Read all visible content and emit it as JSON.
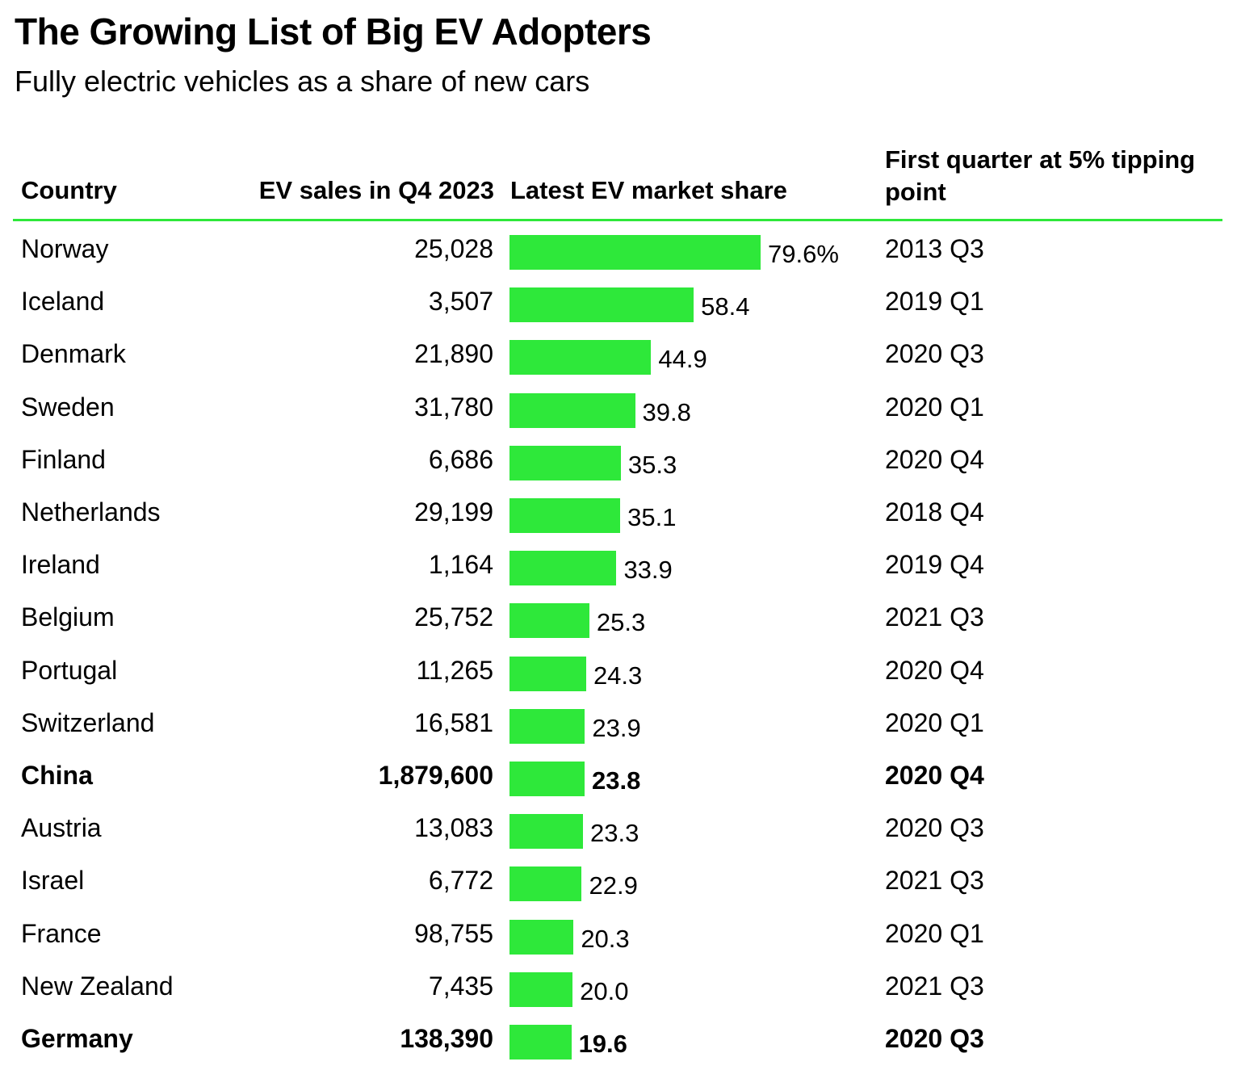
{
  "title": "The Growing List of Big EV Adopters",
  "subtitle": "Fully electric vehicles as a share of new cars",
  "columns": {
    "country": "Country",
    "sales": "EV sales in Q4 2023",
    "share": "Latest EV market share",
    "first": "First quarter at 5% tipping point"
  },
  "colors": {
    "bar": "#2ee83a",
    "rule": "#2ee83a",
    "text": "#000000"
  },
  "chart_data": {
    "type": "table",
    "share_max": 79.6,
    "rows": [
      {
        "country": "Norway",
        "sales": "25,028",
        "share": 79.6,
        "share_label": "79.6%",
        "first": "2013 Q3",
        "bold": false
      },
      {
        "country": "Iceland",
        "sales": "3,507",
        "share": 58.4,
        "share_label": "58.4",
        "first": "2019 Q1",
        "bold": false
      },
      {
        "country": "Denmark",
        "sales": "21,890",
        "share": 44.9,
        "share_label": "44.9",
        "first": "2020 Q3",
        "bold": false
      },
      {
        "country": "Sweden",
        "sales": "31,780",
        "share": 39.8,
        "share_label": "39.8",
        "first": "2020 Q1",
        "bold": false
      },
      {
        "country": "Finland",
        "sales": "6,686",
        "share": 35.3,
        "share_label": "35.3",
        "first": "2020 Q4",
        "bold": false
      },
      {
        "country": "Netherlands",
        "sales": "29,199",
        "share": 35.1,
        "share_label": "35.1",
        "first": "2018 Q4",
        "bold": false
      },
      {
        "country": "Ireland",
        "sales": "1,164",
        "share": 33.9,
        "share_label": "33.9",
        "first": "2019 Q4",
        "bold": false
      },
      {
        "country": "Belgium",
        "sales": "25,752",
        "share": 25.3,
        "share_label": "25.3",
        "first": "2021 Q3",
        "bold": false
      },
      {
        "country": "Portugal",
        "sales": "11,265",
        "share": 24.3,
        "share_label": "24.3",
        "first": "2020 Q4",
        "bold": false
      },
      {
        "country": "Switzerland",
        "sales": "16,581",
        "share": 23.9,
        "share_label": "23.9",
        "first": "2020 Q1",
        "bold": false
      },
      {
        "country": "China",
        "sales": "1,879,600",
        "share": 23.8,
        "share_label": "23.8",
        "first": "2020 Q4",
        "bold": true
      },
      {
        "country": "Austria",
        "sales": "13,083",
        "share": 23.3,
        "share_label": "23.3",
        "first": "2020 Q3",
        "bold": false
      },
      {
        "country": "Israel",
        "sales": "6,772",
        "share": 22.9,
        "share_label": "22.9",
        "first": "2021 Q3",
        "bold": false
      },
      {
        "country": "France",
        "sales": "98,755",
        "share": 20.3,
        "share_label": "20.3",
        "first": "2020 Q1",
        "bold": false
      },
      {
        "country": "New Zealand",
        "sales": "7,435",
        "share": 20.0,
        "share_label": "20.0",
        "first": "2021 Q3",
        "bold": false
      },
      {
        "country": "Germany",
        "sales": "138,390",
        "share": 19.6,
        "share_label": "19.6",
        "first": "2020 Q3",
        "bold": true
      }
    ]
  }
}
